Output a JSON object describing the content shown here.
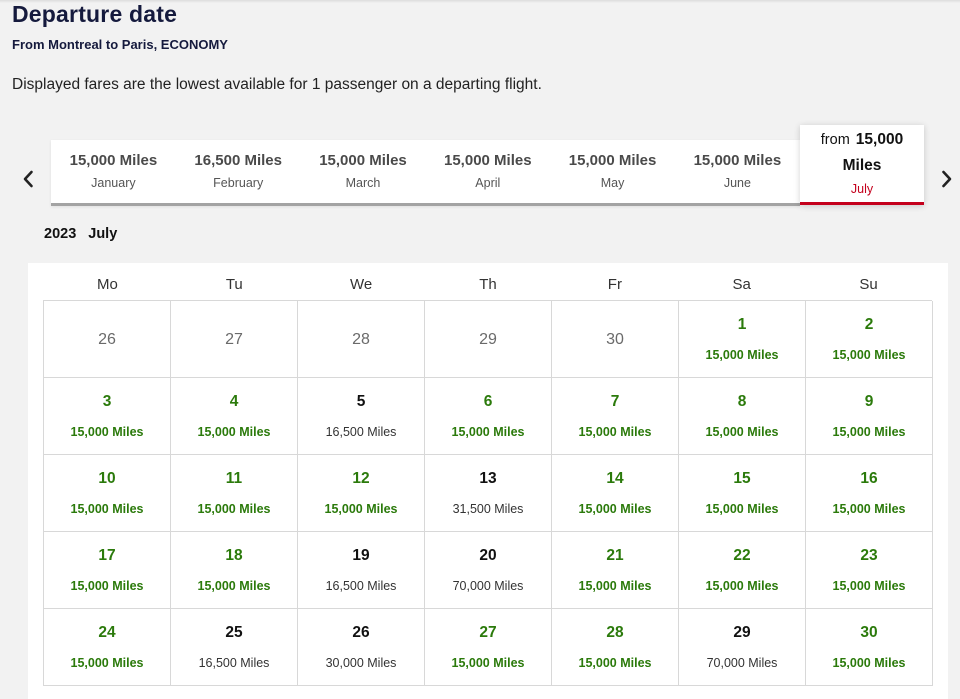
{
  "header": {
    "title": "Departure date",
    "route": "From Montreal to Paris, ECONOMY",
    "disclaimer": "Displayed fares are the lowest available for 1 passenger on a departing flight."
  },
  "month_strip": [
    {
      "miles": "15,000 Miles",
      "month": "January"
    },
    {
      "miles": "16,500 Miles",
      "month": "February"
    },
    {
      "miles": "15,000 Miles",
      "month": "March"
    },
    {
      "miles": "15,000 Miles",
      "month": "April"
    },
    {
      "miles": "15,000 Miles",
      "month": "May"
    },
    {
      "miles": "15,000 Miles",
      "month": "June"
    }
  ],
  "active_month": {
    "prefix": "from",
    "amount": "15,000",
    "unit": "Miles",
    "month": "July"
  },
  "calendar": {
    "year": "2023",
    "month": "July",
    "weekdays": [
      "Mo",
      "Tu",
      "We",
      "Th",
      "Fr",
      "Sa",
      "Su"
    ],
    "weeks": [
      [
        {
          "day": "26",
          "price": "",
          "type": "outside"
        },
        {
          "day": "27",
          "price": "",
          "type": "outside"
        },
        {
          "day": "28",
          "price": "",
          "type": "outside"
        },
        {
          "day": "29",
          "price": "",
          "type": "outside"
        },
        {
          "day": "30",
          "price": "",
          "type": "outside"
        },
        {
          "day": "1",
          "price": "15,000 Miles",
          "type": "low"
        },
        {
          "day": "2",
          "price": "15,000 Miles",
          "type": "low"
        }
      ],
      [
        {
          "day": "3",
          "price": "15,000 Miles",
          "type": "low"
        },
        {
          "day": "4",
          "price": "15,000 Miles",
          "type": "low"
        },
        {
          "day": "5",
          "price": "16,500 Miles",
          "type": "normal"
        },
        {
          "day": "6",
          "price": "15,000 Miles",
          "type": "low"
        },
        {
          "day": "7",
          "price": "15,000 Miles",
          "type": "low"
        },
        {
          "day": "8",
          "price": "15,000 Miles",
          "type": "low"
        },
        {
          "day": "9",
          "price": "15,000 Miles",
          "type": "low"
        }
      ],
      [
        {
          "day": "10",
          "price": "15,000 Miles",
          "type": "low"
        },
        {
          "day": "11",
          "price": "15,000 Miles",
          "type": "low"
        },
        {
          "day": "12",
          "price": "15,000 Miles",
          "type": "low"
        },
        {
          "day": "13",
          "price": "31,500 Miles",
          "type": "normal"
        },
        {
          "day": "14",
          "price": "15,000 Miles",
          "type": "low"
        },
        {
          "day": "15",
          "price": "15,000 Miles",
          "type": "low"
        },
        {
          "day": "16",
          "price": "15,000 Miles",
          "type": "low"
        }
      ],
      [
        {
          "day": "17",
          "price": "15,000 Miles",
          "type": "low"
        },
        {
          "day": "18",
          "price": "15,000 Miles",
          "type": "low"
        },
        {
          "day": "19",
          "price": "16,500 Miles",
          "type": "normal"
        },
        {
          "day": "20",
          "price": "70,000 Miles",
          "type": "normal"
        },
        {
          "day": "21",
          "price": "15,000 Miles",
          "type": "low"
        },
        {
          "day": "22",
          "price": "15,000 Miles",
          "type": "low"
        },
        {
          "day": "23",
          "price": "15,000 Miles",
          "type": "low"
        }
      ],
      [
        {
          "day": "24",
          "price": "15,000 Miles",
          "type": "low"
        },
        {
          "day": "25",
          "price": "16,500 Miles",
          "type": "normal"
        },
        {
          "day": "26",
          "price": "30,000 Miles",
          "type": "normal"
        },
        {
          "day": "27",
          "price": "15,000 Miles",
          "type": "low"
        },
        {
          "day": "28",
          "price": "15,000 Miles",
          "type": "low"
        },
        {
          "day": "29",
          "price": "70,000 Miles",
          "type": "normal"
        },
        {
          "day": "30",
          "price": "15,000 Miles",
          "type": "low"
        }
      ]
    ]
  },
  "colors": {
    "low_fare": "#2b7a0b",
    "accent": "#c4001c",
    "title": "#151a3d"
  }
}
